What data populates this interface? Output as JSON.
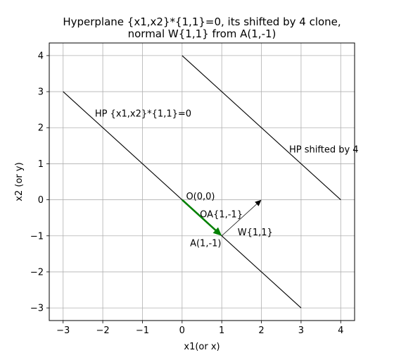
{
  "chart_data": {
    "type": "line",
    "title": [
      "Hyperplane {x1,x2}*{1,1}=0, its shifted by 4 clone,",
      "normal W{1,1} from A(1,-1)"
    ],
    "xlabel": "x1(or x)",
    "ylabel": "x2 (or y)",
    "xlim": [
      -3.35,
      4.35
    ],
    "ylim": [
      -3.35,
      4.35
    ],
    "xticks": [
      -3,
      -2,
      -1,
      0,
      1,
      2,
      3,
      4
    ],
    "yticks": [
      -3,
      -2,
      -1,
      0,
      1,
      2,
      3,
      4
    ],
    "tick_labels": [
      "−3",
      "−2",
      "−1",
      "0",
      "1",
      "2",
      "3",
      "4"
    ],
    "grid": true,
    "series": [
      {
        "id": "hp",
        "x": [
          -3,
          3
        ],
        "y": [
          3,
          -3
        ],
        "color": "#000000",
        "style": "line"
      },
      {
        "id": "hp-shifted",
        "x": [
          0,
          4
        ],
        "y": [
          4,
          0
        ],
        "color": "#000000",
        "style": "line"
      },
      {
        "id": "oa",
        "x": [
          0,
          1
        ],
        "y": [
          0,
          -1
        ],
        "color": "#008000",
        "style": "arrow"
      },
      {
        "id": "w",
        "x": [
          1,
          2
        ],
        "y": [
          -1,
          0
        ],
        "color": "#000000",
        "style": "arrow"
      }
    ],
    "annotations": [
      {
        "text": "HP {x1,x2}*{1,1}=0",
        "x": -2.2,
        "y": 2.4
      },
      {
        "text": "HP shifted by 4",
        "x": 2.7,
        "y": 1.4
      },
      {
        "text": "O(0,0)",
        "x": 0.1,
        "y": 0.1
      },
      {
        "text": "OA{1,-1}",
        "x": 0.45,
        "y": -0.4
      },
      {
        "text": "W{1,1}",
        "x": 1.4,
        "y": -0.9
      },
      {
        "text": "A(1,-1)",
        "x": 0.2,
        "y": -1.2
      }
    ]
  }
}
